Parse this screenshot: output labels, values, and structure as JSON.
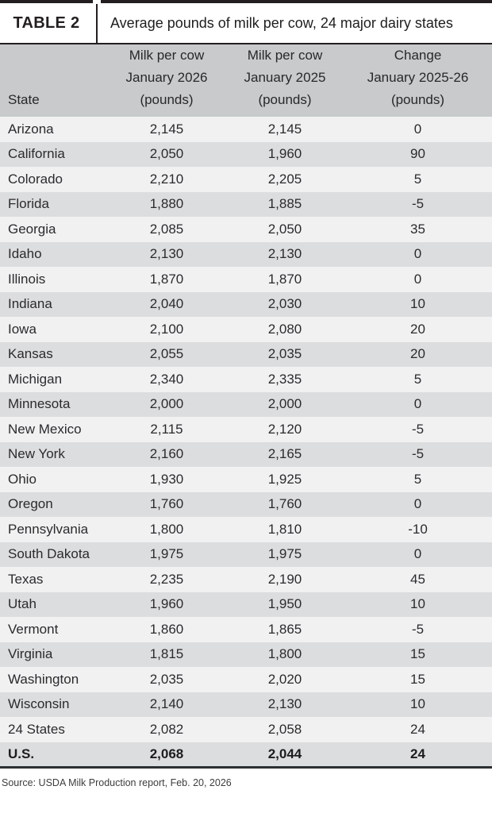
{
  "header": {
    "label": "TABLE 2",
    "title": "Average pounds of milk per cow, 24 major dairy states"
  },
  "columns": {
    "state": "State",
    "milk_2026": [
      "Milk per cow",
      "January 2026",
      "(pounds)"
    ],
    "milk_2025": [
      "Milk per cow",
      "January 2025",
      "(pounds)"
    ],
    "change": [
      "Change",
      "January 2025-26",
      "(pounds)"
    ]
  },
  "chart_data": {
    "type": "table",
    "title": "Average pounds of milk per cow, 24 major dairy states",
    "columns": [
      "State",
      "Milk per cow January 2026 (pounds)",
      "Milk per cow January 2025 (pounds)",
      "Change January 2025-26 (pounds)"
    ],
    "rows": [
      {
        "state": "Arizona",
        "jan_2026": "2,145",
        "jan_2025": "2,145",
        "change": "0"
      },
      {
        "state": "California",
        "jan_2026": "2,050",
        "jan_2025": "1,960",
        "change": "90"
      },
      {
        "state": "Colorado",
        "jan_2026": "2,210",
        "jan_2025": "2,205",
        "change": "5"
      },
      {
        "state": "Florida",
        "jan_2026": "1,880",
        "jan_2025": "1,885",
        "change": "-5"
      },
      {
        "state": "Georgia",
        "jan_2026": "2,085",
        "jan_2025": "2,050",
        "change": "35"
      },
      {
        "state": "Idaho",
        "jan_2026": "2,130",
        "jan_2025": "2,130",
        "change": "0"
      },
      {
        "state": "Illinois",
        "jan_2026": "1,870",
        "jan_2025": "1,870",
        "change": "0"
      },
      {
        "state": "Indiana",
        "jan_2026": "2,040",
        "jan_2025": "2,030",
        "change": "10"
      },
      {
        "state": "Iowa",
        "jan_2026": "2,100",
        "jan_2025": "2,080",
        "change": "20"
      },
      {
        "state": "Kansas",
        "jan_2026": "2,055",
        "jan_2025": "2,035",
        "change": "20"
      },
      {
        "state": "Michigan",
        "jan_2026": "2,340",
        "jan_2025": "2,335",
        "change": "5"
      },
      {
        "state": "Minnesota",
        "jan_2026": "2,000",
        "jan_2025": "2,000",
        "change": "0"
      },
      {
        "state": "New Mexico",
        "jan_2026": "2,115",
        "jan_2025": "2,120",
        "change": "-5"
      },
      {
        "state": "New York",
        "jan_2026": "2,160",
        "jan_2025": "2,165",
        "change": "-5"
      },
      {
        "state": "Ohio",
        "jan_2026": "1,930",
        "jan_2025": "1,925",
        "change": "5"
      },
      {
        "state": "Oregon",
        "jan_2026": "1,760",
        "jan_2025": "1,760",
        "change": "0"
      },
      {
        "state": "Pennsylvania",
        "jan_2026": "1,800",
        "jan_2025": "1,810",
        "change": "-10"
      },
      {
        "state": "South Dakota",
        "jan_2026": "1,975",
        "jan_2025": "1,975",
        "change": "0"
      },
      {
        "state": "Texas",
        "jan_2026": "2,235",
        "jan_2025": "2,190",
        "change": "45"
      },
      {
        "state": "Utah",
        "jan_2026": "1,960",
        "jan_2025": "1,950",
        "change": "10"
      },
      {
        "state": "Vermont",
        "jan_2026": "1,860",
        "jan_2025": "1,865",
        "change": "-5"
      },
      {
        "state": "Virginia",
        "jan_2026": "1,815",
        "jan_2025": "1,800",
        "change": "15"
      },
      {
        "state": "Washington",
        "jan_2026": "2,035",
        "jan_2025": "2,020",
        "change": "15"
      },
      {
        "state": "Wisconsin",
        "jan_2026": "2,140",
        "jan_2025": "2,130",
        "change": "10"
      },
      {
        "state": "24 States",
        "jan_2026": "2,082",
        "jan_2025": "2,058",
        "change": "24"
      },
      {
        "state": "U.S.",
        "jan_2026": "2,068",
        "jan_2025": "2,044",
        "change": "24",
        "bold": true
      }
    ]
  },
  "source": "Source: USDA Milk Production report, Feb. 20, 2026",
  "colors": {
    "rule": "#231f20",
    "header_band": "#c8cacb",
    "row_light": "#f1f1f2",
    "row_dark": "#dcddde",
    "text": "#2b2b2d"
  }
}
